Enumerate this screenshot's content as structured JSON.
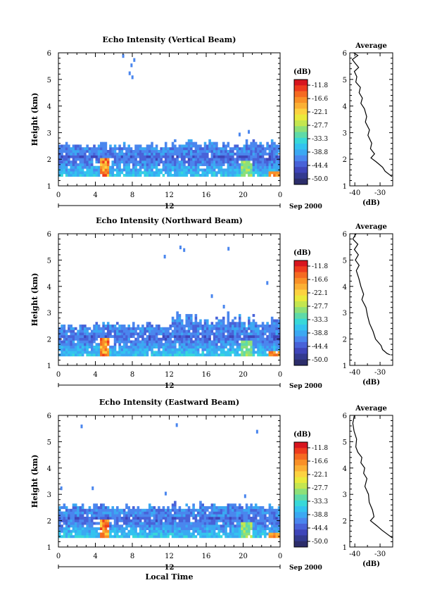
{
  "footer": {
    "date_label": "Sep 2000",
    "day_label": "12",
    "xlabel": "Local Time"
  },
  "colorbar": {
    "unit": "(dB)",
    "ticks": [
      "-11.8",
      "-16.6",
      "-22.1",
      "-27.7",
      "-33.3",
      "-38.8",
      "-44.4",
      "-50.0"
    ],
    "palette": [
      "#d7151e",
      "#ee3b1d",
      "#f56a21",
      "#f99027",
      "#fbb034",
      "#fcd240",
      "#eaea3c",
      "#c4e650",
      "#8ee078",
      "#5fdaa8",
      "#38d8d8",
      "#33c3ef",
      "#3ba8f2",
      "#4a86ee",
      "#4862d8",
      "#3e45b9",
      "#333a8f",
      "#2c2d6a"
    ]
  },
  "chart_data": [
    {
      "type": "heatmap",
      "title": "Echo Intensity (Vertical Beam)",
      "xlabel": "",
      "ylabel": "Height (km)",
      "xlim": [
        0,
        24
      ],
      "ylim": [
        1,
        6
      ],
      "xticks": [
        "0",
        "4",
        "8",
        "12",
        "16",
        "20",
        "0"
      ],
      "yticks": [
        "1",
        "2",
        "3",
        "4",
        "5",
        "6"
      ],
      "colorbar_range": [
        -50.0,
        -11.8
      ],
      "profile": {
        "title": "Average",
        "xlabel": "(dB)",
        "xlim": [
          -42,
          -25
        ],
        "xticks": [
          "-40",
          "-30"
        ],
        "points": [
          [
            -40.5,
            6.0
          ],
          [
            -38.8,
            5.9
          ],
          [
            -41.0,
            5.75
          ],
          [
            -39.8,
            5.6
          ],
          [
            -38.5,
            5.45
          ],
          [
            -40.2,
            5.3
          ],
          [
            -39.2,
            5.1
          ],
          [
            -39.6,
            4.9
          ],
          [
            -37.8,
            4.7
          ],
          [
            -38.3,
            4.5
          ],
          [
            -37.0,
            4.3
          ],
          [
            -37.6,
            4.1
          ],
          [
            -36.2,
            3.9
          ],
          [
            -35.3,
            3.6
          ],
          [
            -35.8,
            3.4
          ],
          [
            -34.2,
            3.1
          ],
          [
            -34.8,
            2.9
          ],
          [
            -33.3,
            2.6
          ],
          [
            -33.8,
            2.4
          ],
          [
            -32.2,
            2.2
          ],
          [
            -33.6,
            2.05
          ],
          [
            -31.5,
            1.9
          ],
          [
            -29.0,
            1.7
          ],
          [
            -28.0,
            1.55
          ],
          [
            -25.3,
            1.35
          ]
        ]
      }
    },
    {
      "type": "heatmap",
      "title": "Echo Intensity (Northward Beam)",
      "xlabel": "",
      "ylabel": "Height (km)",
      "xlim": [
        0,
        24
      ],
      "ylim": [
        1,
        6
      ],
      "xticks": [
        "0",
        "4",
        "8",
        "12",
        "16",
        "20",
        "0"
      ],
      "yticks": [
        "1",
        "2",
        "3",
        "4",
        "5",
        "6"
      ],
      "colorbar_range": [
        -50.0,
        -11.8
      ],
      "profile": {
        "title": "Average",
        "xlabel": "(dB)",
        "xlim": [
          -42,
          -25
        ],
        "xticks": [
          "-40",
          "-30"
        ],
        "points": [
          [
            -39.5,
            6.0
          ],
          [
            -40.8,
            5.8
          ],
          [
            -38.8,
            5.6
          ],
          [
            -40.2,
            5.4
          ],
          [
            -38.6,
            5.2
          ],
          [
            -39.8,
            5.0
          ],
          [
            -38.3,
            4.8
          ],
          [
            -39.4,
            4.6
          ],
          [
            -38.4,
            4.3
          ],
          [
            -37.6,
            4.0
          ],
          [
            -36.5,
            3.7
          ],
          [
            -37.2,
            3.5
          ],
          [
            -35.6,
            3.2
          ],
          [
            -35.0,
            2.9
          ],
          [
            -34.2,
            2.6
          ],
          [
            -32.8,
            2.3
          ],
          [
            -31.8,
            2.0
          ],
          [
            -29.6,
            1.75
          ],
          [
            -29.0,
            1.6
          ],
          [
            -27.2,
            1.45
          ],
          [
            -26.0,
            1.4
          ]
        ]
      }
    },
    {
      "type": "heatmap",
      "title": "Echo Intensity (Eastward Beam)",
      "xlabel": "Local Time",
      "ylabel": "Height (km)",
      "xlim": [
        0,
        24
      ],
      "ylim": [
        1,
        6
      ],
      "xticks": [
        "0",
        "4",
        "8",
        "12",
        "16",
        "20",
        "0"
      ],
      "yticks": [
        "1",
        "2",
        "3",
        "4",
        "5",
        "6"
      ],
      "colorbar_range": [
        -50.0,
        -11.8
      ],
      "profile": {
        "title": "Average",
        "xlabel": "(dB)",
        "xlim": [
          -42,
          -25
        ],
        "xticks": [
          "-40",
          "-30"
        ],
        "points": [
          [
            -40.2,
            6.0
          ],
          [
            -40.8,
            5.7
          ],
          [
            -40.3,
            5.4
          ],
          [
            -39.3,
            5.1
          ],
          [
            -39.6,
            4.8
          ],
          [
            -38.8,
            4.6
          ],
          [
            -37.2,
            4.4
          ],
          [
            -37.6,
            4.2
          ],
          [
            -36.1,
            4.0
          ],
          [
            -36.5,
            3.8
          ],
          [
            -35.2,
            3.6
          ],
          [
            -36.0,
            3.3
          ],
          [
            -34.6,
            3.0
          ],
          [
            -34.3,
            2.7
          ],
          [
            -33.0,
            2.4
          ],
          [
            -32.4,
            2.15
          ],
          [
            -33.8,
            2.0
          ],
          [
            -31.2,
            1.8
          ],
          [
            -29.4,
            1.65
          ],
          [
            -27.3,
            1.5
          ],
          [
            -25.2,
            1.35
          ]
        ]
      }
    }
  ]
}
